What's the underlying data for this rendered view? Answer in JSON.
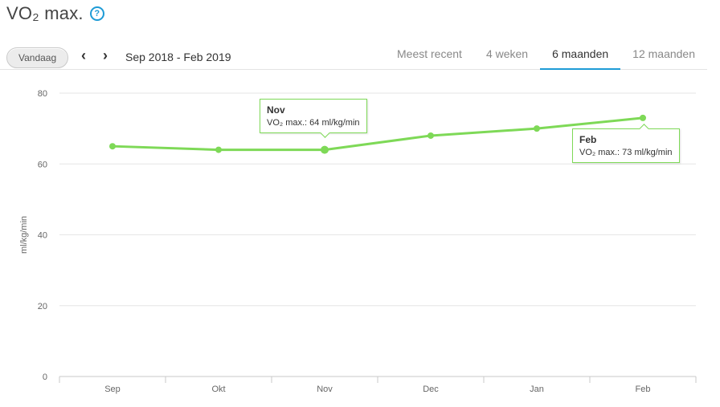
{
  "header": {
    "title": "VO₂ max.",
    "help_icon": "help-circle-icon"
  },
  "toolbar": {
    "today_label": "Vandaag",
    "prev_icon": "chevron-left-icon",
    "next_icon": "chevron-right-icon",
    "range_label": "Sep 2018 - Feb 2019",
    "tabs": [
      "Meest recent",
      "4 weken",
      "6 maanden",
      "12 maanden"
    ],
    "active_tab": "6 maanden",
    "accent_color": "#1e9bd6"
  },
  "tooltips": [
    {
      "title": "Nov",
      "text": "VO₂ max.: 64 ml/kg/min"
    },
    {
      "title": "Feb",
      "text": "VO₂ max.: 73 ml/kg/min"
    }
  ],
  "chart_data": {
    "type": "line",
    "categories": [
      "Sep",
      "Okt",
      "Nov",
      "Dec",
      "Jan",
      "Feb"
    ],
    "series": [
      {
        "values": [
          65,
          64,
          64,
          68,
          70,
          73
        ],
        "color": "#7ed957"
      }
    ],
    "ylabel": "ml/kg/min",
    "ylim": [
      0,
      80
    ],
    "yticks": [
      "0",
      "20",
      "40",
      "60",
      "80"
    ],
    "grid": true
  }
}
